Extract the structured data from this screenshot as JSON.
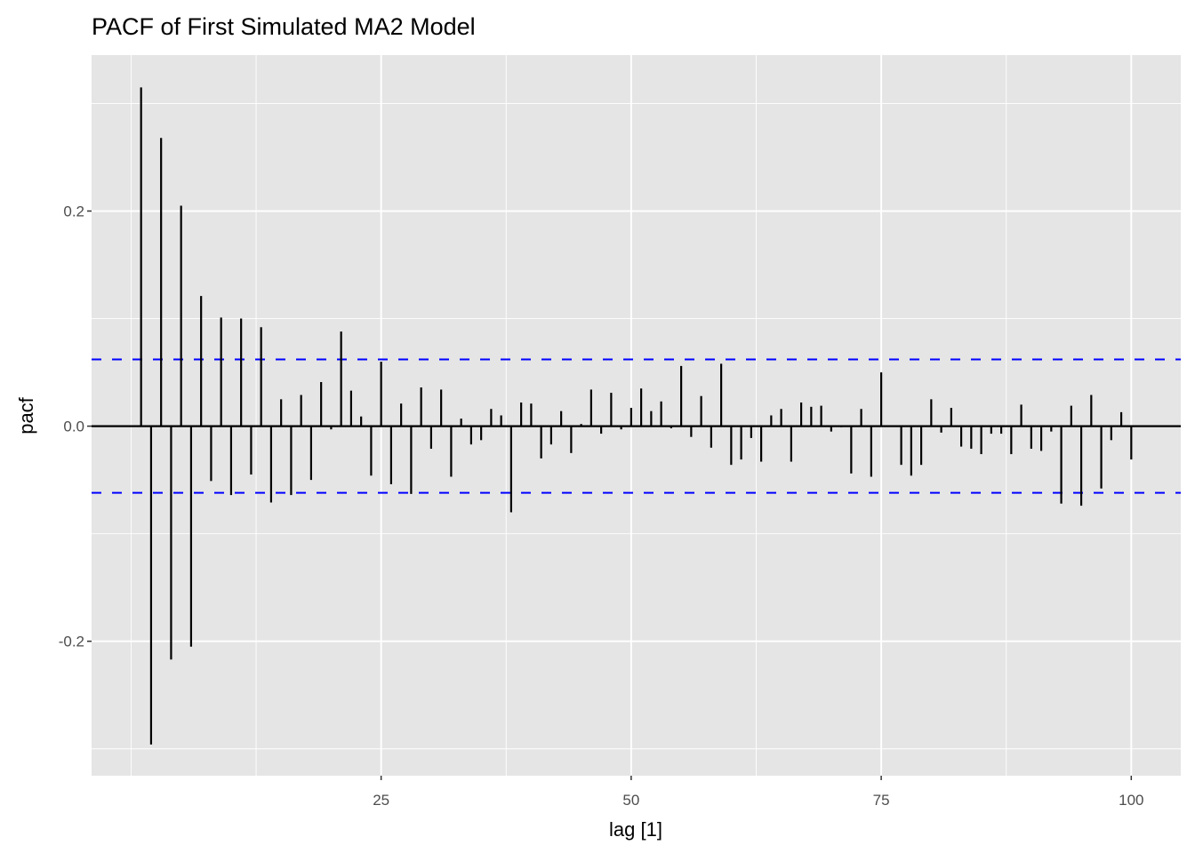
{
  "chart_data": {
    "type": "bar",
    "title": "PACF of First Simulated MA2 Model",
    "xlabel": "lag [1]",
    "ylabel": "pacf",
    "xlim": [
      -3.95,
      104.95
    ],
    "ylim": [
      -0.325,
      0.345
    ],
    "x_ticks": [
      25,
      50,
      75,
      100
    ],
    "x_tick_labels": [
      "25",
      "50",
      "75",
      "100"
    ],
    "y_ticks": [
      -0.2,
      0.0,
      0.2
    ],
    "y_tick_labels": [
      "-0.2",
      "0.0",
      "0.2"
    ],
    "grid": true,
    "confidence_bound": 0.062,
    "colors": {
      "bars": "#000000",
      "bounds": "#0000ff",
      "panel": "#e5e5e5",
      "grid": "#ffffff"
    },
    "lags": [
      1,
      2,
      3,
      4,
      5,
      6,
      7,
      8,
      9,
      10,
      11,
      12,
      13,
      14,
      15,
      16,
      17,
      18,
      19,
      20,
      21,
      22,
      23,
      24,
      25,
      26,
      27,
      28,
      29,
      30,
      31,
      32,
      33,
      34,
      35,
      36,
      37,
      38,
      39,
      40,
      41,
      42,
      43,
      44,
      45,
      46,
      47,
      48,
      49,
      50,
      51,
      52,
      53,
      54,
      55,
      56,
      57,
      58,
      59,
      60,
      61,
      62,
      63,
      64,
      65,
      66,
      67,
      68,
      69,
      70,
      71,
      72,
      73,
      74,
      75,
      76,
      77,
      78,
      79,
      80,
      81,
      82,
      83,
      84,
      85,
      86,
      87,
      88,
      89,
      90,
      91,
      92,
      93,
      94,
      95,
      96,
      97,
      98,
      99,
      100
    ],
    "values": [
      0.315,
      -0.296,
      0.268,
      -0.217,
      0.205,
      -0.205,
      0.121,
      -0.051,
      0.101,
      -0.064,
      0.1,
      -0.045,
      0.092,
      -0.071,
      0.025,
      -0.064,
      0.029,
      -0.05,
      0.041,
      -0.003,
      0.088,
      0.033,
      0.009,
      -0.046,
      0.06,
      -0.054,
      0.021,
      -0.063,
      0.036,
      -0.021,
      0.034,
      -0.047,
      0.007,
      -0.017,
      -0.013,
      0.016,
      0.01,
      -0.08,
      0.022,
      0.021,
      -0.03,
      -0.017,
      0.014,
      -0.025,
      0.002,
      0.034,
      -0.007,
      0.031,
      -0.003,
      0.017,
      0.035,
      0.014,
      0.023,
      -0.002,
      0.056,
      -0.01,
      0.028,
      -0.02,
      0.058,
      -0.036,
      -0.031,
      -0.011,
      -0.033,
      0.01,
      0.016,
      -0.033,
      0.022,
      0.018,
      0.019,
      -0.005,
      -0.001,
      -0.044,
      0.016,
      -0.047,
      0.05,
      0.0,
      -0.036,
      -0.046,
      -0.036,
      0.025,
      -0.006,
      0.017,
      -0.019,
      -0.021,
      -0.026,
      -0.007,
      -0.007,
      -0.026,
      0.02,
      -0.021,
      -0.023,
      -0.005,
      -0.072,
      0.019,
      -0.074,
      0.029,
      -0.058,
      -0.013,
      0.013,
      -0.031
    ]
  }
}
